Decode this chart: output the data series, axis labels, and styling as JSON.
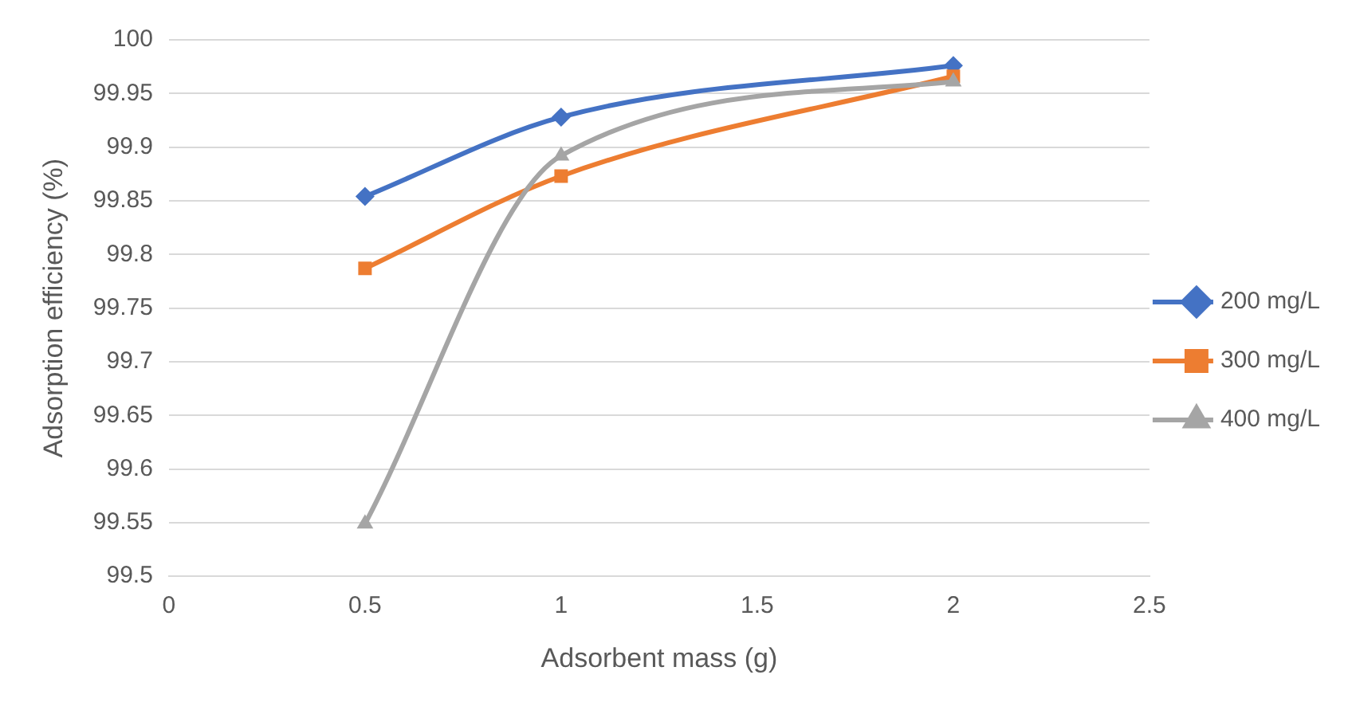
{
  "chart_data": {
    "type": "line",
    "xlabel": "Adsorbent mass (g)",
    "ylabel": "Adsorption efficiency (%)",
    "x": [
      0.5,
      1,
      2
    ],
    "series": [
      {
        "name": "200 mg/L",
        "color": "#4472c4",
        "marker": "diamond",
        "values": [
          99.854,
          99.928,
          99.976
        ]
      },
      {
        "name": "300 mg/L",
        "color": "#ed7d31",
        "marker": "square",
        "values": [
          99.787,
          99.873,
          99.966
        ]
      },
      {
        "name": "400 mg/L",
        "color": "#a5a5a5",
        "marker": "triangle",
        "values": [
          99.549,
          99.892,
          99.961
        ]
      }
    ],
    "xlim": [
      0,
      2.5
    ],
    "xticks": [
      0,
      0.5,
      1,
      1.5,
      2,
      2.5
    ],
    "ylim": [
      99.5,
      100
    ],
    "yticks": [
      99.5,
      99.55,
      99.6,
      99.65,
      99.7,
      99.75,
      99.8,
      99.85,
      99.9,
      99.95,
      100
    ],
    "grid": "y",
    "legend": "right"
  }
}
